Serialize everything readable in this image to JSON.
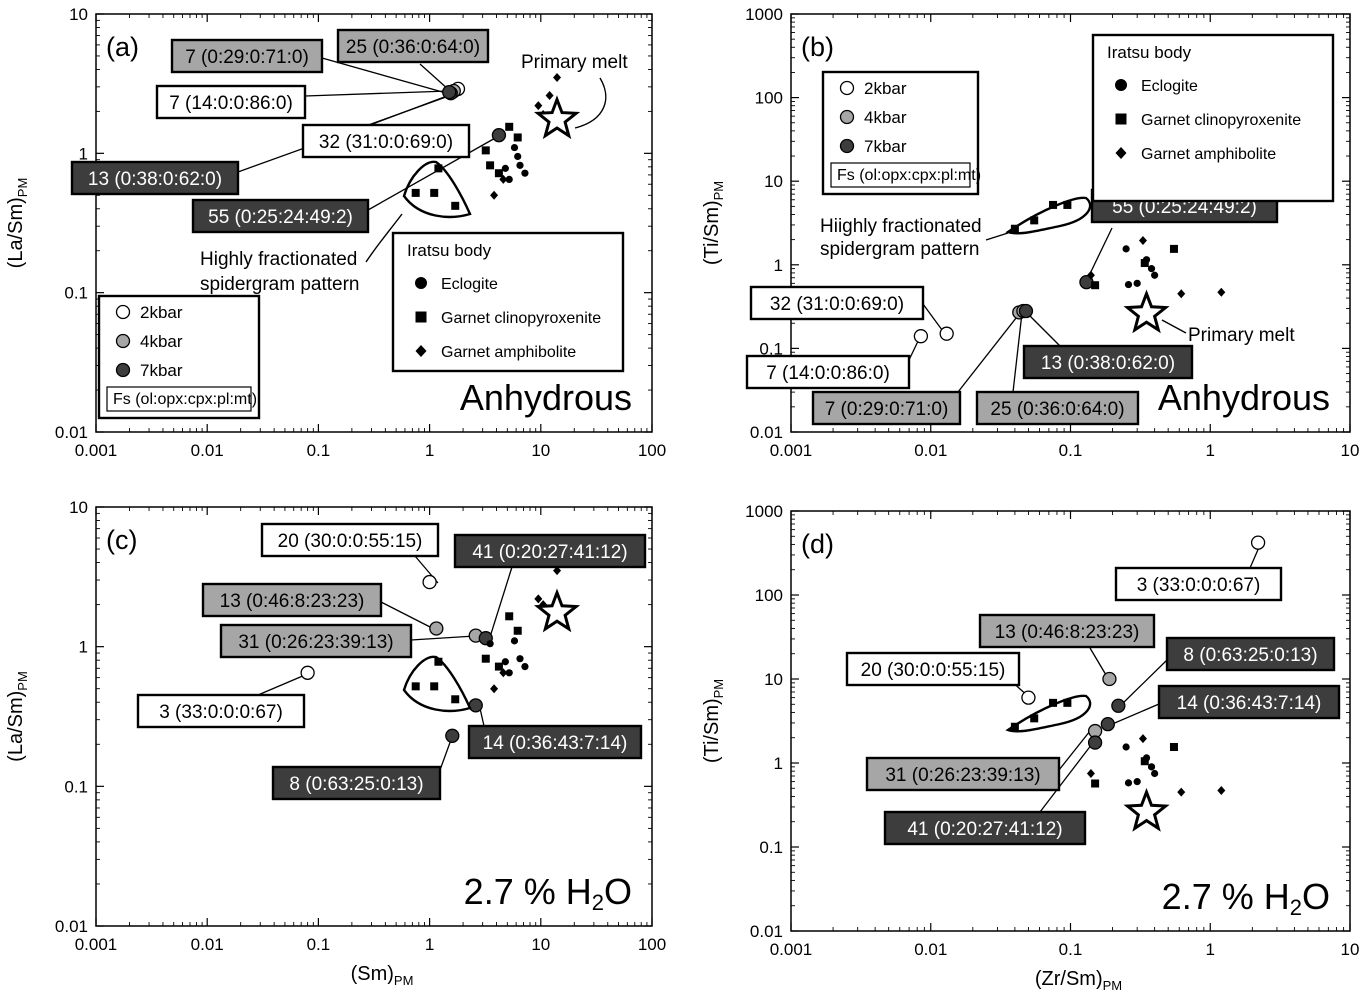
{
  "figure": {
    "panels": [
      {
        "id": "a",
        "label": "(a)",
        "ylabel_main": "(La/Sm)",
        "ylabel_sub": "PM",
        "xlabel_main": "",
        "xlabel_sub": "",
        "xticks": [
          "0.001",
          "0.01",
          "0.1",
          "1",
          "10",
          "100"
        ],
        "yticks": [
          "0.01",
          "0.1",
          "1",
          "10"
        ],
        "condition": "Anhydrous",
        "condition_sub": "",
        "legend_models": {
          "items": [
            "2kbar",
            "4kbar",
            "7kbar"
          ],
          "note": "Fs (ol:opx:cpx:pl:mt)"
        },
        "legend_iratsu": {
          "title": "Iratsu body",
          "items": [
            "Eclogite",
            "Garnet clinopyroxenite",
            "Garnet amphibolite"
          ]
        },
        "annotations": [
          "Primary melt",
          "Highly fractionated",
          "spidergram pattern"
        ],
        "callouts": [
          "7 (0:29:0:71:0)",
          "25 (0:36:0:64:0)",
          "7 (14:0:0:86:0)",
          "32 (31:0:0:69:0)",
          "13 (0:38:0:62:0)",
          "55 (0:25:24:49:2)"
        ]
      },
      {
        "id": "b",
        "label": "(b)",
        "ylabel_main": "(Ti/Sm)",
        "ylabel_sub": "PM",
        "xlabel_main": "",
        "xlabel_sub": "",
        "xticks": [
          "0.001",
          "0.01",
          "0.1",
          "1",
          "10"
        ],
        "yticks": [
          "0.01",
          "0.1",
          "1",
          "10",
          "100",
          "1000"
        ],
        "condition": "Anhydrous",
        "condition_sub": "",
        "legend_models": {
          "items": [
            "2kbar",
            "4kbar",
            "7kbar"
          ],
          "note": "Fs (ol:opx:cpx:pl:mt)"
        },
        "legend_iratsu": {
          "title": "Iratsu body",
          "items": [
            "Eclogite",
            "Garnet clinopyroxenite",
            "Garnet amphibolite"
          ]
        },
        "annotations": [
          "Hiighly fractionated",
          "spidergram pattern",
          "Primary melt"
        ],
        "callouts": [
          "55 (0:25:24:49:2)",
          "32 (31:0:0:69:0)",
          "7 (14:0:0:86:0)",
          "7 (0:29:0:71:0)",
          "25 (0:36:0:64:0)",
          "13 (0:38:0:62:0)"
        ]
      },
      {
        "id": "c",
        "label": "(c)",
        "ylabel_main": "(La/Sm)",
        "ylabel_sub": "PM",
        "xlabel_main": "(Sm)",
        "xlabel_sub": "PM",
        "xticks": [
          "0.001",
          "0.01",
          "0.1",
          "1",
          "10",
          "100"
        ],
        "yticks": [
          "0.01",
          "0.1",
          "1",
          "10"
        ],
        "condition": "2.7 % H",
        "condition_sub": "2",
        "condition_tail": "O",
        "callouts": [
          "20 (30:0:0:55:15)",
          "41 (0:20:27:41:12)",
          "13 (0:46:8:23:23)",
          "31 (0:26:23:39:13)",
          "3 (33:0:0:0:67)",
          "14 (0:36:43:7:14)",
          "8 (0:63:25:0:13)"
        ]
      },
      {
        "id": "d",
        "label": "(d)",
        "ylabel_main": "(Ti/Sm)",
        "ylabel_sub": "PM",
        "xlabel_main": "(Zr/Sm)",
        "xlabel_sub": "PM",
        "xticks": [
          "0.001",
          "0.01",
          "0.1",
          "1",
          "10"
        ],
        "yticks": [
          "0.01",
          "0.1",
          "1",
          "10",
          "100",
          "1000"
        ],
        "condition": "2.7 % H",
        "condition_sub": "2",
        "condition_tail": "O",
        "callouts": [
          "3 (33:0:0:0:67)",
          "13 (0:46:8:23:23)",
          "8 (0:63:25:0:13)",
          "20 (30:0:0:55:15)",
          "14 (0:36:43:7:14)",
          "31 (0:26:23:39:13)",
          "41 (0:20:27:41:12)"
        ]
      }
    ],
    "colors": {
      "white_fill": "#ffffff",
      "grey_fill": "#a6a6a6",
      "dark_fill": "#3d3d3d",
      "axis": "#000000"
    }
  },
  "chart_data": [
    {
      "type": "scatter",
      "panel": "a",
      "xscale": "log",
      "yscale": "log",
      "xlim": [
        0.001,
        100
      ],
      "ylim": [
        0.01,
        10
      ],
      "condition": "Anhydrous",
      "series": [
        {
          "name": "2kbar",
          "points": [
            {
              "x": 1.8,
              "y": 2.9,
              "label": "7 (14:0:0:86:0)"
            }
          ]
        },
        {
          "name": "4kbar",
          "points": [
            {
              "x": 1.6,
              "y": 2.75,
              "label": "7 (0:29:0:71:0)"
            },
            {
              "name_ref": "25",
              "x": 1.65,
              "y": 2.8,
              "label": "25 (0:36:0:64:0)"
            }
          ]
        },
        {
          "name": "7kbar",
          "points": [
            {
              "x": 1.55,
              "y": 2.7,
              "label": "13 (0:38:0:62:0)"
            },
            {
              "x": 1.5,
              "y": 2.75,
              "label": "32 (31:0:0:69:0)"
            },
            {
              "x": 4.2,
              "y": 1.35,
              "label": "55 (0:25:24:49:2)"
            }
          ]
        },
        {
          "name": "Eclogite",
          "points": [
            {
              "x": 5.8,
              "y": 1.1
            },
            {
              "x": 6.5,
              "y": 0.82
            },
            {
              "x": 7.2,
              "y": 0.72
            },
            {
              "x": 5.2,
              "y": 0.65
            },
            {
              "x": 6.2,
              "y": 0.95
            },
            {
              "x": 4.8,
              "y": 0.78
            }
          ]
        },
        {
          "name": "Garnet clinopyroxenite",
          "points": [
            {
              "x": 1.2,
              "y": 0.78
            },
            {
              "x": 0.75,
              "y": 0.52
            },
            {
              "x": 1.1,
              "y": 0.52
            },
            {
              "x": 1.7,
              "y": 0.42
            },
            {
              "x": 3.5,
              "y": 0.82
            },
            {
              "x": 4.2,
              "y": 0.72
            },
            {
              "x": 5.2,
              "y": 1.55
            },
            {
              "x": 6.2,
              "y": 1.3
            },
            {
              "x": 3.2,
              "y": 1.05
            }
          ]
        },
        {
          "name": "Garnet amphibolite",
          "points": [
            {
              "x": 14.0,
              "y": 3.5
            },
            {
              "x": 10.5,
              "y": 1.9
            },
            {
              "x": 3.8,
              "y": 0.5
            },
            {
              "x": 4.6,
              "y": 0.65
            },
            {
              "x": 9.5,
              "y": 2.2
            },
            {
              "x": 12.0,
              "y": 2.6
            }
          ]
        }
      ],
      "primary_melt": {
        "x": 14.0,
        "y": 1.75
      }
    },
    {
      "type": "scatter",
      "panel": "b",
      "xscale": "log",
      "yscale": "log",
      "xlim": [
        0.001,
        10
      ],
      "ylim": [
        0.01,
        1000
      ],
      "condition": "Anhydrous",
      "series": [
        {
          "name": "2kbar",
          "points": [
            {
              "x": 0.0085,
              "y": 0.14,
              "label": "7 (14:0:0:86:0)"
            },
            {
              "x": 0.013,
              "y": 0.15,
              "label": "32 (31:0:0:69:0)"
            }
          ]
        },
        {
          "name": "4kbar",
          "points": [
            {
              "x": 0.043,
              "y": 0.27,
              "label": "7 (0:29:0:71:0)"
            },
            {
              "x": 0.046,
              "y": 0.28,
              "label": "25 (0:36:0:64:0)"
            }
          ]
        },
        {
          "name": "7kbar",
          "points": [
            {
              "x": 0.048,
              "y": 0.28,
              "label": "13 (0:38:0:62:0)"
            },
            {
              "x": 0.13,
              "y": 0.62,
              "label": "55 (0:25:24:49:2)"
            }
          ]
        },
        {
          "name": "Eclogite",
          "points": [
            {
              "x": 0.25,
              "y": 1.55
            },
            {
              "x": 0.35,
              "y": 1.15
            },
            {
              "x": 0.38,
              "y": 0.9
            },
            {
              "x": 0.3,
              "y": 0.6
            },
            {
              "x": 0.4,
              "y": 0.75
            },
            {
              "x": 0.26,
              "y": 0.58
            }
          ]
        },
        {
          "name": "Garnet clinopyroxenite",
          "points": [
            {
              "x": 0.04,
              "y": 2.7
            },
            {
              "x": 0.055,
              "y": 3.4
            },
            {
              "x": 0.075,
              "y": 5.2
            },
            {
              "x": 0.095,
              "y": 5.2
            },
            {
              "x": 0.55,
              "y": 1.55
            },
            {
              "x": 0.34,
              "y": 1.05
            },
            {
              "x": 0.15,
              "y": 0.57
            }
          ]
        },
        {
          "name": "Garnet amphibolite",
          "points": [
            {
              "x": 0.33,
              "y": 1.95
            },
            {
              "x": 0.62,
              "y": 0.45
            },
            {
              "x": 1.2,
              "y": 0.47
            },
            {
              "x": 0.14,
              "y": 0.75
            }
          ]
        }
      ],
      "primary_melt": {
        "x": 0.35,
        "y": 0.26
      }
    },
    {
      "type": "scatter",
      "panel": "c",
      "xscale": "log",
      "yscale": "log",
      "xlim": [
        0.001,
        100
      ],
      "ylim": [
        0.01,
        10
      ],
      "condition": "2.7 % H2O",
      "series": [
        {
          "name": "2kbar",
          "points": [
            {
              "x": 1.0,
              "y": 2.9,
              "label": "20 (30:0:0:55:15)"
            },
            {
              "x": 0.08,
              "y": 0.65,
              "label": "3 (33:0:0:0:67)"
            }
          ]
        },
        {
          "name": "4kbar",
          "points": [
            {
              "x": 1.15,
              "y": 1.35,
              "label": "13 (0:46:8:23:23)"
            },
            {
              "x": 2.6,
              "y": 1.2,
              "label": "31 (0:26:23:39:13)"
            }
          ]
        },
        {
          "name": "7kbar",
          "points": [
            {
              "x": 3.2,
              "y": 1.15,
              "label": "41 (0:20:27:41:12)"
            },
            {
              "x": 2.6,
              "y": 0.38,
              "label": "14 (0:36:43:7:14)"
            },
            {
              "x": 1.6,
              "y": 0.23,
              "label": "8 (0:63:25:0:13)"
            }
          ]
        },
        {
          "name": "Eclogite",
          "points": [
            {
              "x": 5.8,
              "y": 1.1
            },
            {
              "x": 6.5,
              "y": 0.82
            },
            {
              "x": 7.2,
              "y": 0.72
            },
            {
              "x": 5.2,
              "y": 0.65
            },
            {
              "x": 3.5,
              "y": 1.05
            },
            {
              "x": 4.8,
              "y": 0.78
            }
          ]
        },
        {
          "name": "Garnet clinopyroxenite",
          "points": [
            {
              "x": 1.2,
              "y": 0.78
            },
            {
              "x": 0.75,
              "y": 0.52
            },
            {
              "x": 1.1,
              "y": 0.52
            },
            {
              "x": 1.7,
              "y": 0.42
            },
            {
              "x": 3.2,
              "y": 0.82
            },
            {
              "x": 4.2,
              "y": 0.72
            },
            {
              "x": 5.2,
              "y": 1.65
            },
            {
              "x": 6.2,
              "y": 1.3
            }
          ]
        },
        {
          "name": "Garnet amphibolite",
          "points": [
            {
              "x": 14.0,
              "y": 3.5
            },
            {
              "x": 10.5,
              "y": 2.0
            },
            {
              "x": 3.8,
              "y": 0.5
            },
            {
              "x": 4.6,
              "y": 0.65
            },
            {
              "x": 9.5,
              "y": 2.2
            }
          ]
        }
      ],
      "primary_melt": {
        "x": 14.0,
        "y": 1.75
      }
    },
    {
      "type": "scatter",
      "panel": "d",
      "xscale": "log",
      "yscale": "log",
      "xlim": [
        0.001,
        10
      ],
      "ylim": [
        0.01,
        1000
      ],
      "condition": "2.7 % H2O",
      "series": [
        {
          "name": "2kbar",
          "points": [
            {
              "x": 2.2,
              "y": 420,
              "label": "3 (33:0:0:0:67)"
            },
            {
              "x": 0.05,
              "y": 6.0,
              "label": "20 (30:0:0:55:15)"
            }
          ]
        },
        {
          "name": "4kbar",
          "points": [
            {
              "x": 0.19,
              "y": 10.0,
              "label": "13 (0:46:8:23:23)"
            },
            {
              "x": 0.15,
              "y": 2.4,
              "label": "31 (0:26:23:39:13)"
            }
          ]
        },
        {
          "name": "7kbar",
          "points": [
            {
              "x": 0.22,
              "y": 4.8,
              "label": "8 (0:63:25:0:13)"
            },
            {
              "x": 0.185,
              "y": 2.9,
              "label": "14 (0:36:43:7:14)"
            },
            {
              "x": 0.15,
              "y": 1.75,
              "label": "41 (0:20:27:41:12)"
            }
          ]
        },
        {
          "name": "Eclogite",
          "points": [
            {
              "x": 0.25,
              "y": 1.55
            },
            {
              "x": 0.35,
              "y": 1.15
            },
            {
              "x": 0.38,
              "y": 0.9
            },
            {
              "x": 0.3,
              "y": 0.6
            },
            {
              "x": 0.4,
              "y": 0.75
            },
            {
              "x": 0.26,
              "y": 0.58
            }
          ]
        },
        {
          "name": "Garnet clinopyroxenite",
          "points": [
            {
              "x": 0.04,
              "y": 2.7
            },
            {
              "x": 0.055,
              "y": 3.4
            },
            {
              "x": 0.075,
              "y": 5.2
            },
            {
              "x": 0.095,
              "y": 5.2
            },
            {
              "x": 0.55,
              "y": 1.55
            },
            {
              "x": 0.34,
              "y": 1.05
            },
            {
              "x": 0.15,
              "y": 0.57
            }
          ]
        },
        {
          "name": "Garnet amphibolite",
          "points": [
            {
              "x": 0.33,
              "y": 1.95
            },
            {
              "x": 0.62,
              "y": 0.45
            },
            {
              "x": 1.2,
              "y": 0.47
            },
            {
              "x": 0.14,
              "y": 0.75
            }
          ]
        }
      ],
      "primary_melt": {
        "x": 0.35,
        "y": 0.26
      }
    }
  ]
}
